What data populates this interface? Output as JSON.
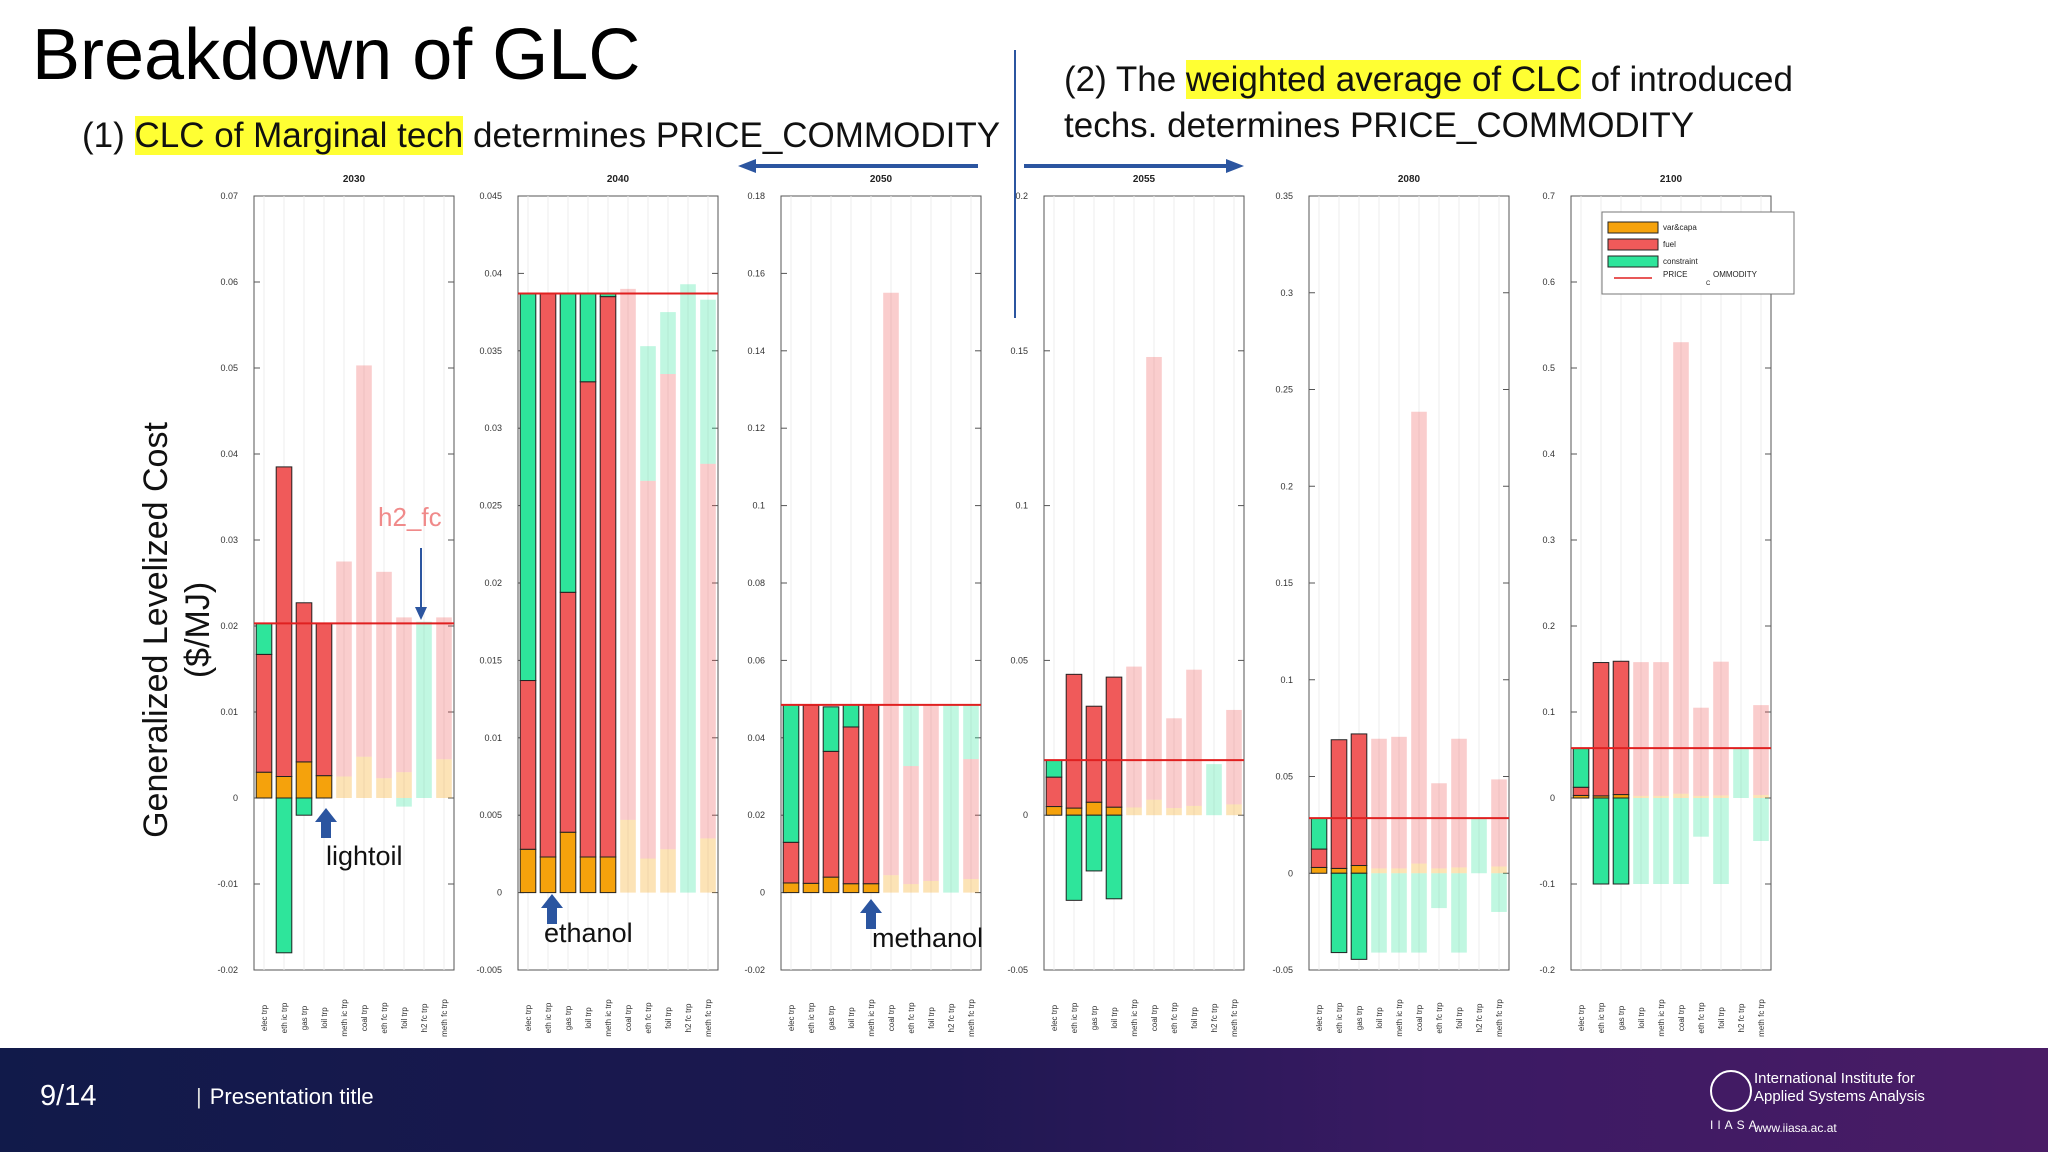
{
  "slide": {
    "title": "Breakdown of GLC",
    "note1": {
      "prefix": "(1) ",
      "highlight": "CLC of Marginal tech",
      "suffix": " determines PRICE_COMMODITY"
    },
    "note2": {
      "line1_prefix": "(2) The ",
      "line1_highlight": "weighted average of CLC",
      "line1_suffix": " of introduced",
      "line2": "techs. determines PRICE_COMMODITY"
    },
    "ylabel_line1": "Generalized Levelized Cost",
    "ylabel_line2": "($/MJ)"
  },
  "annotations": {
    "h2_fc": "h2_fc",
    "lightoil": "lightoil",
    "ethanol": "ethanol",
    "methanol": "methanol"
  },
  "footer": {
    "page": "9/14",
    "title": "Presentation title",
    "bar": "|",
    "logo_line1": "International Institute for",
    "logo_line2": "Applied Systems Analysis",
    "logo_abbr": "IIASA",
    "logo_url": "www.iiasa.ac.at"
  },
  "colors": {
    "var_capa": "#f5a20c",
    "fuel": "#f05a5a",
    "constraint": "#2ee59b",
    "price": "#e02020",
    "arrow": "#2b55a0"
  },
  "chart_data": [
    {
      "type": "bar",
      "stacked": true,
      "title": "2030",
      "ylim": [
        -0.02,
        0.07
      ],
      "yticks": [
        -0.02,
        -0.01,
        0,
        0.01,
        0.02,
        0.03,
        0.04,
        0.05,
        0.06,
        0.07
      ],
      "ytick_labels": [
        "-0.02",
        "-0.01",
        "0",
        "0.01",
        "0.02",
        "0.03",
        "0.04",
        "0.05",
        "0.06",
        "0.07"
      ],
      "categories": [
        "elec trp",
        "eth ic trp",
        "gas trp",
        "loil trp",
        "meth ic trp",
        "coal trp",
        "eth fc trp",
        "foil trp",
        "h2 fc trp",
        "meth fc trp"
      ],
      "price": 0.0203,
      "active": [
        true,
        true,
        true,
        true,
        false,
        false,
        false,
        false,
        false,
        false
      ],
      "series": [
        {
          "name": "var&capa",
          "values": [
            0.003,
            0.0025,
            0.0042,
            0.0026,
            0.0025,
            0.0048,
            0.0023,
            0.003,
            0,
            0.0045
          ]
        },
        {
          "name": "fuel",
          "values": [
            0.0137,
            0.036,
            0.0185,
            0.0177,
            0.025,
            0.0455,
            0.024,
            0.018,
            0,
            0.0165
          ]
        },
        {
          "name": "constraint",
          "values": [
            0.0036,
            -0.018,
            -0.002,
            0,
            0,
            0,
            0,
            -0.001,
            0.0205,
            0
          ]
        }
      ]
    },
    {
      "type": "bar",
      "stacked": true,
      "title": "2040",
      "ylim": [
        -0.005,
        0.045
      ],
      "yticks": [
        -0.005,
        0,
        0.005,
        0.01,
        0.015,
        0.02,
        0.025,
        0.03,
        0.035,
        0.04,
        0.045
      ],
      "ytick_labels": [
        "-0.005",
        "0",
        "0.005",
        "0.01",
        "0.015",
        "0.02",
        "0.025",
        "0.03",
        "0.035",
        "0.04",
        "0.045"
      ],
      "categories": [
        "elec trp",
        "eth ic trp",
        "gas trp",
        "loil trp",
        "meth ic trp",
        "coal trp",
        "eth fc trp",
        "foil trp",
        "h2 fc trp",
        "meth fc trp"
      ],
      "price": 0.0387,
      "active": [
        true,
        true,
        true,
        true,
        true,
        false,
        false,
        false,
        false,
        false
      ],
      "series": [
        {
          "name": "var&capa",
          "values": [
            0.0028,
            0.0023,
            0.0039,
            0.0023,
            0.0023,
            0.0047,
            0.0022,
            0.0028,
            0,
            0.0035
          ]
        },
        {
          "name": "fuel",
          "values": [
            0.0109,
            0.0364,
            0.0155,
            0.0307,
            0.0362,
            0.0343,
            0.0244,
            0.0307,
            0,
            0.0242
          ]
        },
        {
          "name": "constraint",
          "values": [
            0.025,
            0,
            0.0193,
            0.0057,
            0.0002,
            0,
            0.0087,
            0.004,
            0.0393,
            0.0106
          ]
        }
      ]
    },
    {
      "type": "bar",
      "stacked": true,
      "title": "2050",
      "ylim": [
        -0.02,
        0.18
      ],
      "yticks": [
        -0.02,
        0,
        0.02,
        0.04,
        0.06,
        0.08,
        0.1,
        0.12,
        0.14,
        0.16,
        0.18
      ],
      "ytick_labels": [
        "-0.02",
        "0",
        "0.02",
        "0.04",
        "0.06",
        "0.08",
        "0.1",
        "0.12",
        "0.14",
        "0.16",
        "0.18"
      ],
      "categories": [
        "elec trp",
        "eth ic trp",
        "gas trp",
        "loil trp",
        "meth ic trp",
        "coal trp",
        "eth fc trp",
        "foil trp",
        "h2 fc trp",
        "meth fc trp"
      ],
      "price": 0.0485,
      "active": [
        true,
        true,
        true,
        true,
        true,
        false,
        false,
        false,
        false,
        false
      ],
      "series": [
        {
          "name": "var&capa",
          "values": [
            0.0025,
            0.0024,
            0.004,
            0.0023,
            0.0023,
            0.0045,
            0.0022,
            0.003,
            0,
            0.0035
          ]
        },
        {
          "name": "fuel",
          "values": [
            0.0105,
            0.046,
            0.0325,
            0.0405,
            0.0462,
            0.1505,
            0.0305,
            0.0455,
            0,
            0.031
          ]
        },
        {
          "name": "constraint",
          "values": [
            0.0355,
            0,
            0.0115,
            0.0057,
            0,
            0,
            0.0158,
            0,
            0.0485,
            0.014
          ]
        }
      ]
    },
    {
      "type": "bar",
      "stacked": true,
      "title": "2055",
      "ylim": [
        -0.05,
        0.2
      ],
      "yticks": [
        -0.05,
        0,
        0.05,
        0.1,
        0.15,
        0.2
      ],
      "ytick_labels": [
        "-0.05",
        "0",
        "0.05",
        "0.1",
        "0.15",
        "0.2"
      ],
      "categories": [
        "elec trp",
        "eth ic trp",
        "gas trp",
        "loil trp",
        "meth ic trp",
        "coal trp",
        "eth fc trp",
        "foil trp",
        "h2 fc trp",
        "meth fc trp"
      ],
      "price": 0.0178,
      "active": [
        true,
        true,
        true,
        true,
        false,
        false,
        false,
        false,
        false,
        false
      ],
      "series": [
        {
          "name": "var&capa",
          "values": [
            0.0028,
            0.0023,
            0.0042,
            0.0026,
            0.0025,
            0.005,
            0.0023,
            0.003,
            0,
            0.0035
          ]
        },
        {
          "name": "fuel",
          "values": [
            0.0095,
            0.0432,
            0.031,
            0.042,
            0.0455,
            0.143,
            0.029,
            0.044,
            0,
            0.0305
          ]
        },
        {
          "name": "constraint",
          "values": [
            0.0055,
            -0.0275,
            -0.018,
            -0.027,
            0,
            0,
            0,
            0,
            0.0165,
            0
          ]
        }
      ]
    },
    {
      "type": "bar",
      "stacked": true,
      "title": "2080",
      "ylim": [
        -0.05,
        0.35
      ],
      "yticks": [
        -0.05,
        0,
        0.05,
        0.1,
        0.15,
        0.2,
        0.25,
        0.3,
        0.35
      ],
      "ytick_labels": [
        "-0.05",
        "0",
        "0.05",
        "0.1",
        "0.15",
        "0.2",
        "0.25",
        "0.3",
        "0.35"
      ],
      "categories": [
        "elec trp",
        "eth ic trp",
        "gas trp",
        "loil trp",
        "meth ic trp",
        "coal trp",
        "eth fc trp",
        "foil trp",
        "h2 fc trp",
        "meth fc trp"
      ],
      "price": 0.0285,
      "active": [
        true,
        true,
        true,
        false,
        false,
        false,
        false,
        false,
        false,
        false
      ],
      "series": [
        {
          "name": "var&capa",
          "values": [
            0.003,
            0.0025,
            0.004,
            0.0025,
            0.0025,
            0.005,
            0.0025,
            0.003,
            0,
            0.0035
          ]
        },
        {
          "name": "fuel",
          "values": [
            0.0095,
            0.0665,
            0.068,
            0.067,
            0.068,
            0.2335,
            0.044,
            0.0665,
            0,
            0.045
          ]
        },
        {
          "name": "constraint",
          "values": [
            0.016,
            -0.041,
            -0.0445,
            -0.041,
            -0.041,
            -0.041,
            -0.018,
            -0.041,
            0.0285,
            -0.02
          ]
        }
      ]
    },
    {
      "type": "bar",
      "stacked": true,
      "title": "2100",
      "ylim": [
        -0.2,
        0.7
      ],
      "yticks": [
        -0.2,
        -0.1,
        0,
        0.1,
        0.2,
        0.3,
        0.4,
        0.5,
        0.6,
        0.7
      ],
      "ytick_labels": [
        "-0.2",
        "-0.1",
        "0",
        "0.1",
        "0.2",
        "0.3",
        "0.4",
        "0.5",
        "0.6",
        "0.7"
      ],
      "categories": [
        "elec trp",
        "eth ic trp",
        "gas trp",
        "loil trp",
        "meth ic trp",
        "coal trp",
        "eth fc trp",
        "foil trp",
        "h2 fc trp",
        "meth fc trp"
      ],
      "price": 0.058,
      "active": [
        true,
        true,
        true,
        false,
        false,
        false,
        false,
        false,
        false,
        false
      ],
      "series": [
        {
          "name": "var&capa",
          "values": [
            0.003,
            0.0025,
            0.004,
            0.0025,
            0.0025,
            0.005,
            0.0025,
            0.003,
            0,
            0.0035
          ]
        },
        {
          "name": "fuel",
          "values": [
            0.0095,
            0.155,
            0.155,
            0.1555,
            0.1555,
            0.525,
            0.1025,
            0.1555,
            0,
            0.1045
          ]
        },
        {
          "name": "constraint",
          "values": [
            0.045,
            -0.1,
            -0.1,
            -0.1,
            -0.1,
            -0.1,
            -0.045,
            -0.1,
            0.058,
            -0.05
          ]
        }
      ]
    }
  ],
  "legend": {
    "entries": [
      "var&capa",
      "fuel",
      "constraint"
    ],
    "price_label": "PRICE",
    "price_sub": "C",
    "price_label2": "OMMODITY"
  }
}
